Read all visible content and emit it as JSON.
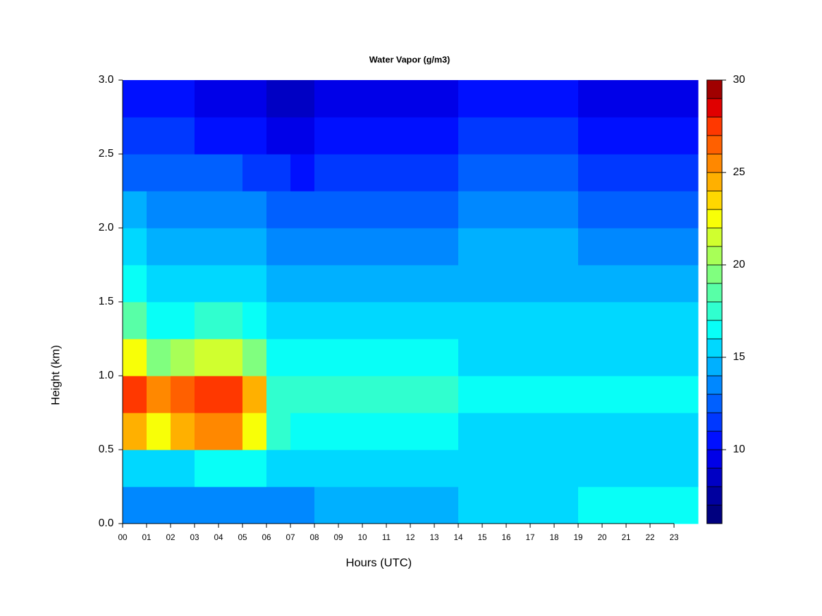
{
  "chart_data": {
    "type": "heatmap",
    "title": "Water Vapor (g/m3)",
    "xlabel": "Hours (UTC)",
    "ylabel": "Height (km)",
    "x": [
      0,
      1,
      2,
      3,
      4,
      5,
      6,
      7,
      8,
      9,
      10,
      11,
      12,
      13,
      14,
      15,
      16,
      17,
      18,
      19,
      20,
      21,
      22,
      23
    ],
    "y": [
      0,
      0.25,
      0.5,
      0.75,
      1.0,
      1.25,
      1.5,
      1.75,
      2.0,
      2.25,
      2.5,
      2.75
    ],
    "z": [
      [
        13,
        13,
        13,
        13,
        13,
        13,
        13,
        13,
        14,
        14,
        14,
        14,
        14,
        14,
        15,
        15,
        15,
        15,
        15,
        16,
        16,
        16,
        16,
        16
      ],
      [
        15,
        15,
        15,
        16,
        16,
        16,
        15,
        15,
        15,
        15,
        15,
        15,
        15,
        15,
        15,
        15,
        15,
        15,
        15,
        15,
        15,
        15,
        15,
        15
      ],
      [
        24,
        22,
        24,
        25,
        25,
        22,
        17,
        16,
        16,
        16,
        16,
        16,
        16,
        16,
        15,
        15,
        15,
        15,
        15,
        15,
        15,
        15,
        15,
        15
      ],
      [
        27,
        25,
        26,
        27,
        27,
        24,
        17,
        17,
        17,
        17,
        17,
        17,
        17,
        17,
        16,
        16,
        16,
        16,
        16,
        16,
        16,
        16,
        16,
        16
      ],
      [
        22,
        19,
        20,
        21,
        21,
        19,
        16,
        16,
        16,
        16,
        16,
        16,
        16,
        16,
        15,
        15,
        15,
        15,
        15,
        15,
        15,
        15,
        15,
        15
      ],
      [
        18,
        16,
        16,
        17,
        17,
        16,
        15,
        15,
        15,
        15,
        15,
        15,
        15,
        15,
        15,
        15,
        15,
        15,
        15,
        15,
        15,
        15,
        15,
        15
      ],
      [
        16,
        15,
        15,
        15,
        15,
        15,
        14,
        14,
        14,
        14,
        14,
        14,
        14,
        14,
        14,
        14,
        14,
        14,
        14,
        14,
        14,
        14,
        14,
        14
      ],
      [
        15,
        14,
        14,
        14,
        14,
        14,
        13,
        13,
        13,
        13,
        13,
        13,
        13,
        13,
        14,
        14,
        14,
        14,
        14,
        13,
        13,
        13,
        13,
        13
      ],
      [
        14,
        13,
        13,
        13,
        13,
        13,
        12,
        12,
        12,
        12,
        12,
        12,
        12,
        12,
        13,
        13,
        13,
        13,
        13,
        12,
        12,
        12,
        12,
        12
      ],
      [
        12,
        12,
        12,
        12,
        12,
        11,
        11,
        10,
        11,
        11,
        11,
        11,
        11,
        11,
        12,
        12,
        12,
        12,
        12,
        11,
        11,
        11,
        11,
        11
      ],
      [
        11,
        11,
        11,
        10,
        10,
        10,
        9,
        9,
        10,
        10,
        10,
        10,
        10,
        10,
        11,
        11,
        11,
        11,
        11,
        10,
        10,
        10,
        10,
        10
      ],
      [
        10,
        10,
        10,
        9,
        9,
        9,
        8,
        8,
        9,
        9,
        9,
        9,
        9,
        9,
        10,
        10,
        10,
        10,
        10,
        9,
        9,
        9,
        9,
        9
      ]
    ],
    "xlim": [
      0,
      24
    ],
    "xticks": [
      {
        "value": 0,
        "label": "00"
      },
      {
        "value": 1,
        "label": "01"
      },
      {
        "value": 2,
        "label": "02"
      },
      {
        "value": 3,
        "label": "03"
      },
      {
        "value": 4,
        "label": "04"
      },
      {
        "value": 5,
        "label": "05"
      },
      {
        "value": 6,
        "label": "06"
      },
      {
        "value": 7,
        "label": "07"
      },
      {
        "value": 8,
        "label": "08"
      },
      {
        "value": 9,
        "label": "09"
      },
      10,
      11,
      12,
      13,
      14,
      15,
      16,
      17,
      18,
      19,
      20,
      21,
      22,
      23
    ],
    "ylim": [
      0,
      3
    ],
    "yticks": [
      {
        "value": 0,
        "label": "0.0"
      },
      0.5,
      {
        "value": 1,
        "label": "1.0"
      },
      1.5,
      {
        "value": 2,
        "label": "2.0"
      },
      2.5,
      {
        "value": 3,
        "label": "3.0"
      }
    ],
    "zlim": [
      6,
      30
    ],
    "zticks": [
      10,
      15,
      20,
      25,
      30
    ],
    "colors": [
      "#00007F",
      "#00009F",
      "#0000C4",
      "#0000E8",
      "#0010FF",
      "#0038FF",
      "#0060FF",
      "#0088FF",
      "#00B0FF",
      "#00D8FF",
      "#08FFF7",
      "#30FFCF",
      "#58FFA7",
      "#80FF7F",
      "#A8FF57",
      "#D0FF2F",
      "#F8FF07",
      "#FFD800",
      "#FFB000",
      "#FF8800",
      "#FF6000",
      "#FF3800",
      "#E00000",
      "#A00000"
    ]
  }
}
